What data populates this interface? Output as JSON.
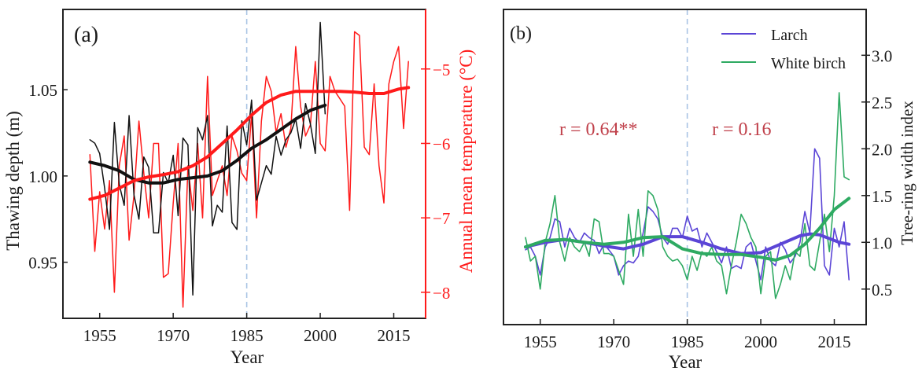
{
  "chart_data": [
    {
      "panel": "(a)",
      "type": "line",
      "xlabel": "Year",
      "ylabel_left": "Thawing depth (m)",
      "ylabel_right": "Annual mean temperature (°C)",
      "xlim": [
        1947.5,
        2021.5
      ],
      "ylim_left": [
        0.9175,
        1.0965
      ],
      "ylim_right": [
        -8.35,
        -4.2
      ],
      "xticks": [
        1955,
        1970,
        1985,
        2000,
        2015
      ],
      "yticks_left": [
        0.95,
        1.0,
        1.05
      ],
      "yticks_right": [
        -8,
        -7,
        -6,
        -5
      ],
      "yticks_left_labels": [
        "0.95",
        "1.00",
        "1.05"
      ],
      "yticks_right_labels": [
        "−8",
        "−7",
        "−6",
        "−5"
      ],
      "xticks_labels": [
        "1955",
        "1970",
        "1985",
        "2000",
        "2015"
      ],
      "grid": false,
      "vline": {
        "x": 1985,
        "style": "dashed",
        "color": "#a9c4e4"
      },
      "colors": {
        "thaw": "#111111",
        "temp": "#ff1a1a",
        "axis_right": "#ff1a1a"
      },
      "series": [
        {
          "name": "Thawing depth",
          "axis": "left",
          "x": [
            1953,
            1954,
            1955,
            1956,
            1957,
            1958,
            1959,
            1960,
            1961,
            1962,
            1963,
            1964,
            1965,
            1966,
            1967,
            1968,
            1969,
            1970,
            1971,
            1972,
            1973,
            1974,
            1975,
            1976,
            1977,
            1978,
            1979,
            1980,
            1981,
            1982,
            1983,
            1984,
            1985,
            1986,
            1987,
            1988,
            1989,
            1990,
            1991,
            1992,
            1993,
            1994,
            1995,
            1996,
            1997,
            1998,
            1999,
            2000,
            2001
          ],
          "values": [
            1.021,
            1.019,
            1.013,
            0.993,
            0.969,
            1.031,
            0.995,
            0.983,
            1.035,
            0.989,
            0.975,
            1.011,
            1.005,
            0.967,
            0.967,
            1.002,
            0.996,
            1.012,
            0.977,
            1.022,
            1.018,
            0.931,
            1.028,
            1.021,
            1.035,
            0.971,
            0.983,
            0.979,
            1.029,
            0.973,
            0.969,
            1.032,
            1.018,
            1.044,
            0.986,
            0.996,
            1.006,
            1.001,
            1.023,
            1.012,
            1.021,
            1.025,
            1.033,
            1.016,
            1.042,
            1.03,
            1.013,
            1.089,
            1.036
          ],
          "stroke": "thin"
        },
        {
          "name": "Thawing depth trend",
          "axis": "left",
          "x": [
            1953,
            1956,
            1959,
            1962,
            1965,
            1968,
            1971,
            1974,
            1977,
            1980,
            1983,
            1986,
            1989,
            1992,
            1995,
            1998,
            2001
          ],
          "values": [
            1.008,
            1.006,
            1.003,
            0.998,
            0.996,
            0.996,
            0.998,
            0.999,
            1.0,
            1.003,
            1.009,
            1.016,
            1.021,
            1.027,
            1.033,
            1.038,
            1.041
          ],
          "stroke": "thick"
        },
        {
          "name": "Annual mean temperature",
          "axis": "right",
          "x": [
            1953,
            1954,
            1955,
            1956,
            1957,
            1958,
            1959,
            1960,
            1961,
            1962,
            1963,
            1964,
            1965,
            1966,
            1967,
            1968,
            1969,
            1970,
            1971,
            1972,
            1973,
            1974,
            1975,
            1976,
            1977,
            1978,
            1979,
            1980,
            1981,
            1982,
            1983,
            1984,
            1985,
            1986,
            1987,
            1988,
            1989,
            1990,
            1991,
            1992,
            1993,
            1994,
            1995,
            1996,
            1997,
            1998,
            1999,
            2000,
            2001,
            2002,
            2003,
            2004,
            2005,
            2006,
            2007,
            2008,
            2009,
            2010,
            2011,
            2012,
            2013,
            2014,
            2015,
            2016,
            2017,
            2018
          ],
          "values": [
            -6.15,
            -7.45,
            -6.65,
            -7.15,
            -6.5,
            -8.0,
            -6.3,
            -5.9,
            -7.3,
            -6.7,
            -5.7,
            -6.4,
            -7.0,
            -6.0,
            -6.0,
            -7.8,
            -7.75,
            -6.8,
            -6.0,
            -8.2,
            -6.3,
            -6.9,
            -6.0,
            -7.0,
            -5.1,
            -6.7,
            -6.5,
            -6.3,
            -6.7,
            -5.9,
            -6.1,
            -6.4,
            -6.5,
            -5.6,
            -7.0,
            -5.7,
            -5.1,
            -5.3,
            -5.85,
            -5.6,
            -6.05,
            -5.8,
            -4.7,
            -5.5,
            -5.9,
            -5.75,
            -4.9,
            -6.0,
            -6.1,
            -5.1,
            -5.3,
            -5.4,
            -5.5,
            -6.9,
            -4.5,
            -4.55,
            -6.05,
            -6.15,
            -5.2,
            -6.3,
            -6.8,
            -5.2,
            -4.9,
            -4.7,
            -5.8,
            -4.9
          ],
          "stroke": "thin"
        },
        {
          "name": "Annual mean temperature trend",
          "axis": "right",
          "x": [
            1953,
            1956,
            1959,
            1962,
            1965,
            1968,
            1971,
            1974,
            1977,
            1980,
            1983,
            1986,
            1989,
            1992,
            1995,
            1998,
            2001,
            2004,
            2007,
            2010,
            2013,
            2016,
            2018
          ],
          "values": [
            -6.75,
            -6.7,
            -6.6,
            -6.5,
            -6.45,
            -6.42,
            -6.38,
            -6.3,
            -6.18,
            -6.0,
            -5.82,
            -5.62,
            -5.45,
            -5.35,
            -5.3,
            -5.3,
            -5.3,
            -5.3,
            -5.31,
            -5.33,
            -5.33,
            -5.27,
            -5.25
          ],
          "stroke": "thick"
        }
      ]
    },
    {
      "panel": "(b)",
      "type": "line",
      "xlabel": "Year",
      "ylabel_right": "Tree-ring width index",
      "xlim": [
        1947.5,
        2021.5
      ],
      "ylim": [
        0.12,
        3.49
      ],
      "xticks": [
        1955,
        1970,
        1985,
        2000,
        2015
      ],
      "xticks_labels": [
        "1955",
        "1970",
        "1985",
        "2000",
        "2015"
      ],
      "yticks": [
        0.5,
        1.0,
        1.5,
        2.0,
        2.5,
        3.0
      ],
      "yticks_labels": [
        "0.5",
        "1.0",
        "1.5",
        "2.0",
        "2.5",
        "3.0"
      ],
      "grid": false,
      "legend": {
        "position": "top-right",
        "entries": [
          "Larch",
          "White birch"
        ]
      },
      "annotations": [
        {
          "text": "r = 0.64**",
          "region": "before 1985",
          "color": "#c0414b"
        },
        {
          "text": "r = 0.16",
          "region": "after 1985",
          "color": "#c0414b"
        }
      ],
      "vline": {
        "x": 1985,
        "style": "dashed",
        "color": "#a9c4e4"
      },
      "colors": {
        "larch": "#5b45d6",
        "birch": "#2eaa62"
      },
      "series": [
        {
          "name": "Larch",
          "x": [
            1952,
            1953,
            1954,
            1955,
            1956,
            1957,
            1958,
            1959,
            1960,
            1961,
            1962,
            1963,
            1964,
            1965,
            1966,
            1967,
            1968,
            1969,
            1970,
            1971,
            1972,
            1973,
            1974,
            1975,
            1976,
            1977,
            1978,
            1979,
            1980,
            1981,
            1982,
            1983,
            1984,
            1985,
            1986,
            1987,
            1988,
            1989,
            1990,
            1991,
            1992,
            1993,
            1994,
            1995,
            1996,
            1997,
            1998,
            1999,
            2000,
            2001,
            2002,
            2003,
            2004,
            2005,
            2006,
            2007,
            2008,
            2009,
            2010,
            2011,
            2012,
            2013,
            2014,
            2015,
            2016,
            2017,
            2018
          ],
          "values": [
            0.92,
            0.95,
            0.85,
            0.65,
            0.95,
            1.05,
            1.25,
            1.22,
            0.95,
            1.15,
            1.05,
            1.0,
            1.1,
            1.05,
            1.02,
            0.88,
            0.98,
            0.92,
            0.85,
            0.65,
            0.75,
            0.8,
            0.78,
            0.85,
            1.1,
            1.38,
            1.33,
            1.25,
            1.05,
            0.98,
            1.15,
            1.15,
            1.05,
            1.28,
            1.12,
            1.15,
            0.95,
            1.1,
            1.0,
            0.9,
            0.78,
            0.95,
            0.72,
            0.75,
            0.72,
            0.95,
            1.0,
            0.8,
            0.6,
            0.95,
            0.8,
            0.75,
            1.0,
            0.92,
            0.78,
            0.85,
            1.0,
            1.33,
            1.1,
            2.0,
            1.9,
            0.75,
            0.65,
            1.15,
            0.95,
            1.22,
            0.6
          ],
          "stroke": "thin"
        },
        {
          "name": "Larch trend",
          "x": [
            1952,
            1956,
            1960,
            1964,
            1968,
            1972,
            1976,
            1980,
            1984,
            1988,
            1992,
            1996,
            2000,
            2004,
            2008,
            2010,
            2012,
            2014,
            2016,
            2018
          ],
          "values": [
            0.95,
            1.0,
            1.03,
            1.0,
            0.96,
            0.93,
            0.98,
            1.06,
            1.06,
            1.0,
            0.93,
            0.88,
            0.89,
            0.98,
            1.07,
            1.09,
            1.08,
            1.04,
            1.0,
            0.98
          ],
          "stroke": "thick"
        },
        {
          "name": "White birch",
          "x": [
            1952,
            1953,
            1954,
            1955,
            1956,
            1957,
            1958,
            1959,
            1960,
            1961,
            1962,
            1963,
            1964,
            1965,
            1966,
            1967,
            1968,
            1969,
            1970,
            1971,
            1972,
            1973,
            1974,
            1975,
            1976,
            1977,
            1978,
            1979,
            1980,
            1981,
            1982,
            1983,
            1984,
            1985,
            1986,
            1987,
            1988,
            1989,
            1990,
            1991,
            1992,
            1993,
            1994,
            1995,
            1996,
            1997,
            1998,
            1999,
            2000,
            2001,
            2002,
            2003,
            2004,
            2005,
            2006,
            2007,
            2008,
            2009,
            2010,
            2011,
            2012,
            2013,
            2014,
            2015,
            2016,
            2017,
            2018
          ],
          "values": [
            1.05,
            0.8,
            0.85,
            0.5,
            1.0,
            1.2,
            1.5,
            1.0,
            0.8,
            1.05,
            0.95,
            0.9,
            1.0,
            0.85,
            1.25,
            1.22,
            0.88,
            0.88,
            0.85,
            0.7,
            0.55,
            1.3,
            0.85,
            1.35,
            0.85,
            1.55,
            1.5,
            1.35,
            0.95,
            0.85,
            0.8,
            0.82,
            0.75,
            0.6,
            0.85,
            0.7,
            0.9,
            0.85,
            0.95,
            0.8,
            0.75,
            0.45,
            0.75,
            1.0,
            1.3,
            1.2,
            1.05,
            0.95,
            0.45,
            0.85,
            0.9,
            0.4,
            0.55,
            0.75,
            0.6,
            0.9,
            0.85,
            1.2,
            0.75,
            0.7,
            1.0,
            1.3,
            0.9,
            1.5,
            2.6,
            1.7,
            1.67
          ],
          "stroke": "thin"
        },
        {
          "name": "White birch trend",
          "x": [
            1952,
            1956,
            1960,
            1964,
            1968,
            1972,
            1976,
            1980,
            1984,
            1988,
            1992,
            1996,
            2000,
            2003,
            2006,
            2009,
            2012,
            2015,
            2018
          ],
          "values": [
            0.95,
            1.02,
            1.03,
            1.0,
            0.98,
            1.0,
            1.05,
            1.06,
            0.93,
            0.88,
            0.87,
            0.87,
            0.84,
            0.81,
            0.86,
            0.98,
            1.15,
            1.35,
            1.47
          ],
          "stroke": "thick"
        }
      ]
    }
  ]
}
